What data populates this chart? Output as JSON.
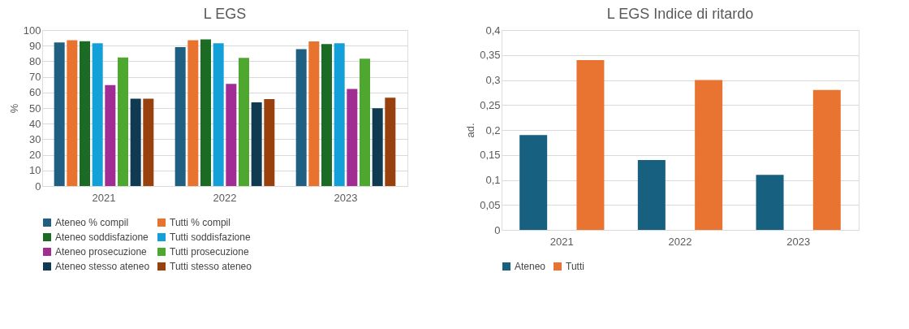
{
  "chart_data": [
    {
      "type": "bar",
      "title": "L  EGS",
      "ylabel": "%",
      "categories": [
        "2021",
        "2022",
        "2023"
      ],
      "series": [
        {
          "name": "Ateneo % compil",
          "color": "#1f5f82",
          "values": [
            92,
            89,
            87.7
          ]
        },
        {
          "name": "Tutti % compil",
          "color": "#e8732f",
          "values": [
            93.5,
            93.5,
            92.7
          ]
        },
        {
          "name": "Ateneo soddisfazione",
          "color": "#1b6b24",
          "values": [
            92.8,
            94,
            91
          ]
        },
        {
          "name": "Tutti soddisfazione",
          "color": "#139fd8",
          "values": [
            91.5,
            91.5,
            91.5
          ]
        },
        {
          "name": "Ateneo prosecuzione",
          "color": "#a02c94",
          "values": [
            64.7,
            65.5,
            62.3
          ]
        },
        {
          "name": "Tutti prosecuzione",
          "color": "#4ea82f",
          "values": [
            82.4,
            82.1,
            81.7
          ]
        },
        {
          "name": "Ateneo stesso ateneo",
          "color": "#0f3a52",
          "values": [
            56,
            53.6,
            49.9
          ]
        },
        {
          "name": "Tutti stesso ateneo",
          "color": "#99400f",
          "values": [
            56,
            55.7,
            56.7
          ]
        }
      ],
      "ylim": [
        0,
        100
      ],
      "yticks": [
        0,
        10,
        20,
        30,
        40,
        50,
        60,
        70,
        80,
        90,
        100
      ],
      "grid": "y",
      "legend": "bottom"
    },
    {
      "type": "bar",
      "title": "L EGS Indice di ritardo",
      "ylabel": "ad.",
      "categories": [
        "2021",
        "2022",
        "2023"
      ],
      "series": [
        {
          "name": "Ateneo",
          "color": "#17607f",
          "values": [
            0.19,
            0.14,
            0.11
          ]
        },
        {
          "name": "Tutti",
          "color": "#e97331",
          "values": [
            0.34,
            0.3,
            0.28
          ]
        }
      ],
      "ylim": [
        0,
        0.4
      ],
      "yticks": [
        0,
        {
          "value": 0.05,
          "label": "0,05"
        },
        {
          "value": 0.1,
          "label": "0,1"
        },
        {
          "value": 0.15,
          "label": "0,15"
        },
        {
          "value": 0.2,
          "label": "0,2"
        },
        {
          "value": 0.25,
          "label": "0,25"
        },
        {
          "value": 0.3,
          "label": "0,3"
        },
        {
          "value": 0.35,
          "label": "0,35"
        },
        {
          "value": 0.4,
          "label": "0,4"
        }
      ],
      "grid": "y",
      "legend": "bottom"
    }
  ]
}
